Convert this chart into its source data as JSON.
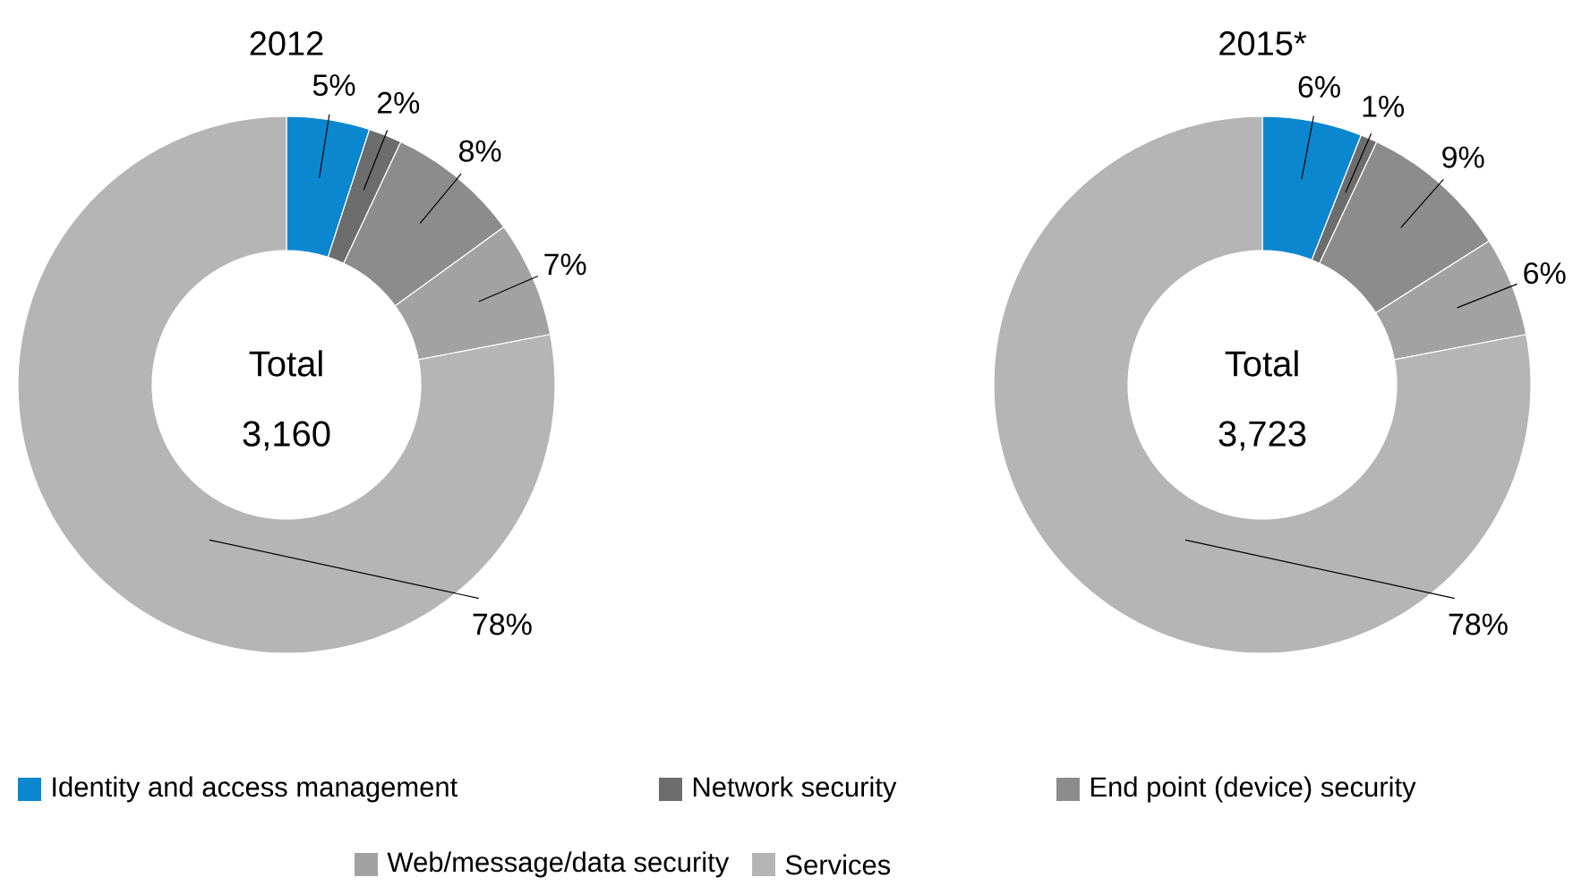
{
  "chart_data": [
    {
      "type": "donut",
      "title": "2012",
      "categories": [
        "Identity and access management",
        "Network security",
        "End point (device) security",
        "Web/message/data security",
        "Services"
      ],
      "values": [
        5,
        2,
        8,
        7,
        78
      ],
      "value_labels": [
        "5%",
        "2%",
        "8%",
        "7%",
        "78%"
      ],
      "colors": [
        "#0a87cf",
        "#6d6d6d",
        "#8c8c8c",
        "#a2a2a2",
        "#b5b5b5"
      ],
      "annotations": [
        "Total",
        "3,160"
      ],
      "legend": "bottom"
    },
    {
      "type": "donut",
      "title": "2015*",
      "categories": [
        null,
        null,
        null,
        null,
        null
      ],
      "values": [
        6,
        1,
        9,
        6,
        78
      ],
      "value_labels": [
        "6%",
        "1%",
        "9%",
        "6%",
        "78%"
      ],
      "colors": [
        "#0a87cf",
        "#6d6d6d",
        "#8c8c8c",
        "#a2a2a2",
        "#b5b5b5"
      ],
      "annotations": [
        "Total",
        "3,723"
      ]
    }
  ]
}
